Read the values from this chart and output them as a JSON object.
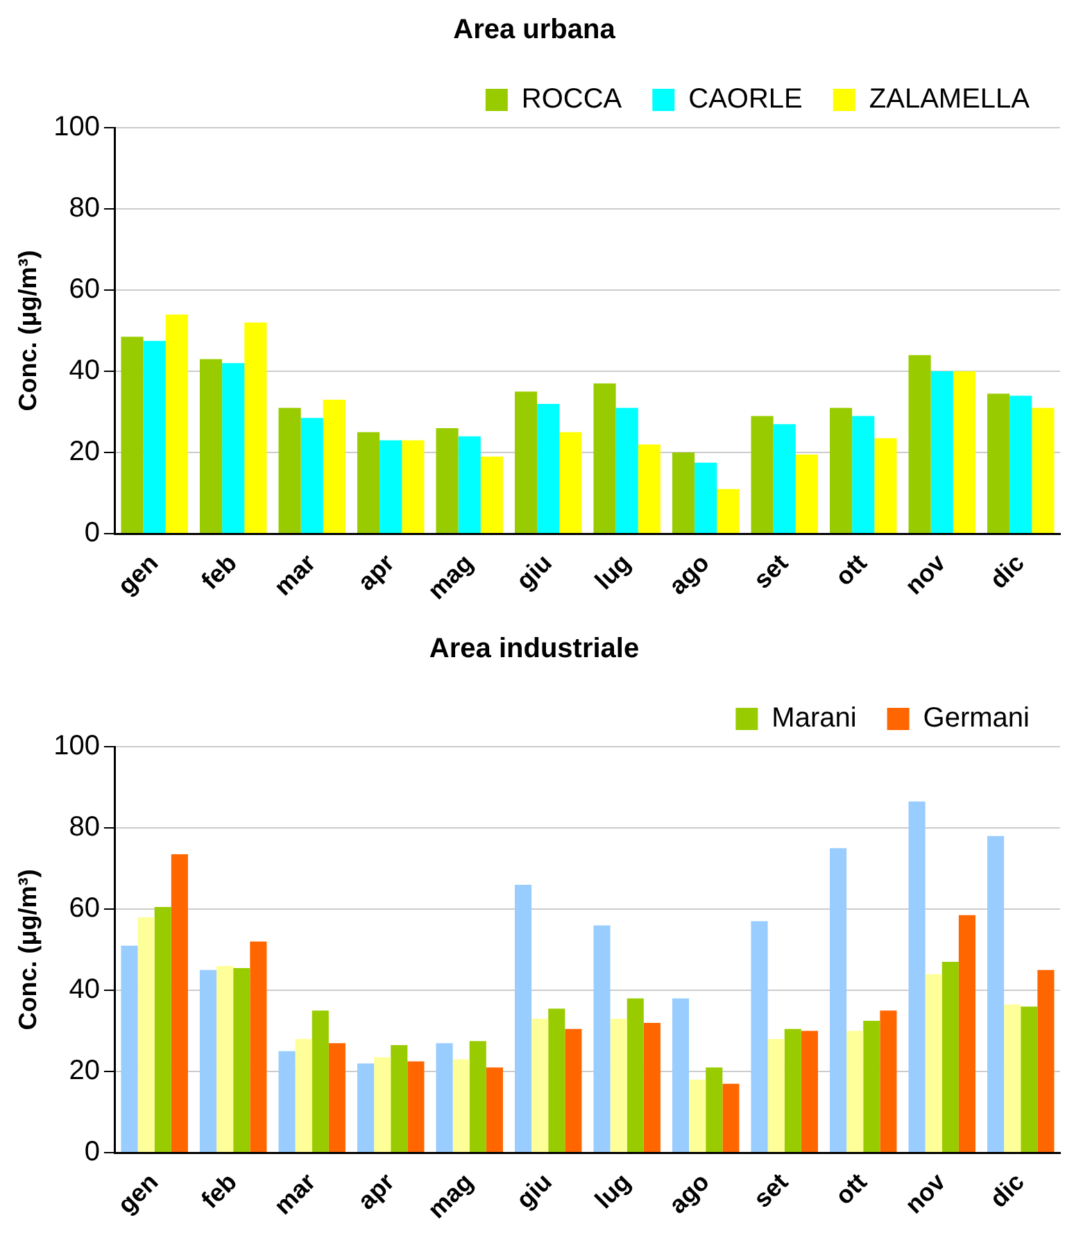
{
  "chart_data": [
    {
      "type": "bar",
      "title": "Area urbana",
      "ylabel": "Conc. (μg/m³)",
      "categories": [
        "gen",
        "feb",
        "mar",
        "apr",
        "mag",
        "giu",
        "lug",
        "ago",
        "set",
        "ott",
        "nov",
        "dic"
      ],
      "series": [
        {
          "name": "ROCCA",
          "color": "#99cc00",
          "values": [
            48.5,
            43,
            31,
            25,
            26,
            35,
            37,
            20,
            29,
            31,
            44,
            34.5
          ]
        },
        {
          "name": "CAORLE",
          "color": "#00ffff",
          "values": [
            47.5,
            42,
            28.5,
            23,
            24,
            32,
            31,
            17.5,
            27,
            29,
            40,
            34
          ]
        },
        {
          "name": "ZALAMELLA",
          "color": "#ffff00",
          "values": [
            54,
            52,
            33,
            23,
            19,
            25,
            22,
            11,
            19.5,
            23.5,
            40,
            31
          ]
        }
      ],
      "ylim": [
        0,
        100
      ],
      "yticks": [
        0,
        20,
        40,
        60,
        80,
        100
      ],
      "grid": "y",
      "legend": "top right"
    },
    {
      "type": "bar",
      "title": "Area industriale",
      "ylabel": "Conc. (μg/m³)",
      "categories": [
        "gen",
        "feb",
        "mar",
        "apr",
        "mag",
        "giu",
        "lug",
        "ago",
        "set",
        "ott",
        "nov",
        "dic"
      ],
      "series": [
        {
          "color": "#99ccff",
          "values": [
            51,
            45,
            25,
            22,
            27,
            66,
            56,
            38,
            57,
            75,
            86.5,
            78
          ]
        },
        {
          "color": "#ffff99",
          "values": [
            58,
            46,
            28,
            23.5,
            23,
            33,
            33,
            18,
            28,
            30,
            44,
            36.5
          ]
        },
        {
          "name": "Marani",
          "color": "#99cc00",
          "values": [
            60.5,
            45.5,
            35,
            26.5,
            27.5,
            35.5,
            38,
            21,
            30.5,
            32.5,
            47,
            36
          ]
        },
        {
          "name": "Germani",
          "color": "#ff6600",
          "values": [
            73.5,
            52,
            27,
            22.5,
            21,
            30.5,
            32,
            17,
            30,
            35,
            58.5,
            45
          ]
        }
      ],
      "ylim": [
        0,
        100
      ],
      "yticks": [
        0,
        20,
        40,
        60,
        80,
        100
      ],
      "grid": "y",
      "legend": "top right"
    }
  ]
}
